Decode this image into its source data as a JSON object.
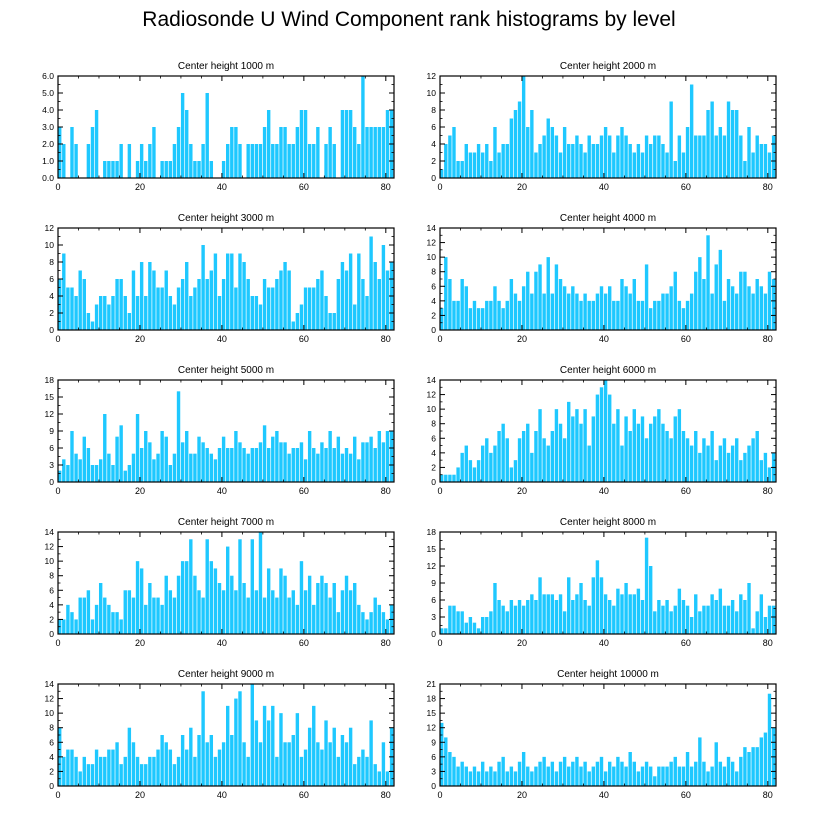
{
  "title": "Radiosonde U Wind Component rank histograms by level",
  "bar_color": "#1EC8FF",
  "chart_data": [
    {
      "type": "bar",
      "title": "Center height 1000 m",
      "x_range": [
        0,
        82
      ],
      "x_ticks": [
        0,
        20,
        40,
        60,
        80
      ],
      "ylim": [
        0,
        6
      ],
      "y_ticks": [
        0.0,
        1.0,
        2.0,
        3.0,
        4.0,
        5.0,
        6.0
      ],
      "y_tick_labels": [
        "0.0",
        "1.0",
        "2.0",
        "3.0",
        "4.0",
        "5.0",
        "6.0"
      ],
      "values": [
        3,
        2,
        0,
        3,
        2,
        0,
        0,
        2,
        3,
        4,
        0,
        1,
        1,
        1,
        1,
        2,
        0,
        2,
        0,
        1,
        2,
        1,
        2,
        3,
        0,
        1,
        1,
        1,
        2,
        3,
        5,
        4,
        2,
        1,
        1,
        2,
        5,
        1,
        0,
        0,
        1,
        2,
        3,
        3,
        2,
        0,
        2,
        2,
        2,
        2,
        3,
        4,
        2,
        2,
        3,
        3,
        2,
        2,
        3,
        4,
        4,
        2,
        2,
        3,
        0,
        2,
        3,
        2,
        0,
        4,
        4,
        4,
        3,
        2,
        6,
        3,
        3,
        3,
        3,
        3,
        4,
        4
      ]
    },
    {
      "type": "bar",
      "title": "Center height 2000 m",
      "x_range": [
        0,
        82
      ],
      "x_ticks": [
        0,
        20,
        40,
        60,
        80
      ],
      "ylim": [
        0,
        12
      ],
      "y_ticks": [
        0,
        2,
        4,
        6,
        8,
        10,
        12
      ],
      "y_tick_labels": [
        "0",
        "2",
        "4",
        "6",
        "8",
        "10",
        "12"
      ],
      "values": [
        1,
        4,
        5,
        6,
        2,
        2,
        4,
        3,
        3,
        4,
        3,
        4,
        2,
        6,
        3,
        4,
        4,
        7,
        8,
        9,
        12,
        6,
        8,
        3,
        4,
        5,
        7,
        6,
        5,
        3,
        6,
        4,
        4,
        5,
        4,
        3,
        5,
        4,
        4,
        5,
        6,
        5,
        3,
        5,
        6,
        5,
        4,
        3,
        4,
        3,
        5,
        4,
        5,
        5,
        4,
        3,
        9,
        2,
        5,
        3,
        6,
        11,
        5,
        5,
        5,
        8,
        9,
        5,
        6,
        5,
        9,
        8,
        8,
        5,
        2,
        6,
        3,
        5,
        4,
        4,
        3,
        5
      ]
    },
    {
      "type": "bar",
      "title": "Center height 3000 m",
      "x_range": [
        0,
        82
      ],
      "x_ticks": [
        0,
        20,
        40,
        60,
        80
      ],
      "ylim": [
        0,
        12
      ],
      "y_ticks": [
        0,
        2,
        4,
        6,
        8,
        10,
        12
      ],
      "y_tick_labels": [
        "0",
        "2",
        "4",
        "6",
        "8",
        "10",
        "12"
      ],
      "values": [
        6,
        9,
        5,
        5,
        4,
        7,
        6,
        2,
        1,
        3,
        4,
        4,
        3,
        4,
        6,
        6,
        4,
        2,
        7,
        4,
        8,
        4,
        8,
        7,
        5,
        5,
        7,
        4,
        3,
        5,
        6,
        8,
        4,
        5,
        6,
        10,
        6,
        7,
        9,
        4,
        6,
        9,
        9,
        5,
        9,
        8,
        6,
        4,
        4,
        3,
        6,
        5,
        5,
        6,
        7,
        8,
        7,
        1,
        2,
        3,
        5,
        5,
        5,
        6,
        7,
        4,
        2,
        2,
        6,
        8,
        7,
        9,
        3,
        9,
        6,
        4,
        11,
        8,
        6,
        10,
        7,
        8
      ]
    },
    {
      "type": "bar",
      "title": "Center height 4000 m",
      "x_range": [
        0,
        82
      ],
      "x_ticks": [
        0,
        20,
        40,
        60,
        80
      ],
      "ylim": [
        0,
        14
      ],
      "y_ticks": [
        0,
        2,
        4,
        6,
        8,
        10,
        12,
        14
      ],
      "y_tick_labels": [
        "0",
        "2",
        "4",
        "6",
        "8",
        "10",
        "12",
        "14"
      ],
      "values": [
        3,
        10,
        7,
        4,
        4,
        7,
        6,
        3,
        4,
        3,
        3,
        4,
        4,
        6,
        4,
        3,
        4,
        7,
        5,
        4,
        6,
        8,
        5,
        8,
        9,
        5,
        10,
        5,
        9,
        7,
        6,
        5,
        6,
        5,
        4,
        5,
        4,
        4,
        5,
        6,
        5,
        6,
        4,
        4,
        7,
        6,
        5,
        7,
        4,
        4,
        9,
        3,
        4,
        4,
        5,
        5,
        6,
        8,
        4,
        3,
        4,
        5,
        8,
        10,
        7,
        13,
        5,
        9,
        11,
        4,
        7,
        6,
        5,
        8,
        8,
        6,
        5,
        7,
        6,
        5,
        8,
        7
      ]
    },
    {
      "type": "bar",
      "title": "Center height 5000 m",
      "x_range": [
        0,
        82
      ],
      "x_ticks": [
        0,
        20,
        40,
        60,
        80
      ],
      "ylim": [
        0,
        18
      ],
      "y_ticks": [
        0,
        3,
        6,
        9,
        12,
        15,
        18
      ],
      "y_tick_labels": [
        "0",
        "3",
        "6",
        "9",
        "12",
        "15",
        "18"
      ],
      "values": [
        2,
        4,
        3,
        9,
        5,
        4,
        8,
        6,
        3,
        3,
        4,
        12,
        5,
        3,
        8,
        10,
        2,
        3,
        5,
        12,
        6,
        9,
        7,
        4,
        5,
        9,
        8,
        3,
        5,
        16,
        7,
        9,
        5,
        5,
        8,
        7,
        6,
        5,
        4,
        6,
        8,
        6,
        6,
        9,
        7,
        6,
        5,
        6,
        6,
        7,
        10,
        6,
        8,
        9,
        7,
        7,
        5,
        6,
        6,
        7,
        4,
        9,
        6,
        5,
        7,
        6,
        9,
        6,
        8,
        5,
        6,
        5,
        8,
        4,
        7,
        7,
        8,
        6,
        9,
        7,
        9,
        9
      ]
    },
    {
      "type": "bar",
      "title": "Center height 6000 m",
      "x_range": [
        0,
        82
      ],
      "x_ticks": [
        0,
        20,
        40,
        60,
        80
      ],
      "ylim": [
        0,
        14
      ],
      "y_ticks": [
        0,
        2,
        4,
        6,
        8,
        10,
        12,
        14
      ],
      "y_tick_labels": [
        "0",
        "2",
        "4",
        "6",
        "8",
        "10",
        "12",
        "14"
      ],
      "values": [
        1,
        1,
        1,
        1,
        2,
        4,
        5,
        3,
        2,
        3,
        5,
        6,
        4,
        5,
        7,
        8,
        6,
        2,
        3,
        6,
        7,
        8,
        4,
        7,
        10,
        6,
        5,
        7,
        10,
        8,
        6,
        11,
        9,
        10,
        8,
        10,
        5,
        9,
        12,
        13,
        14,
        12,
        8,
        10,
        5,
        9,
        7,
        10,
        8,
        9,
        6,
        8,
        9,
        10,
        8,
        7,
        6,
        9,
        10,
        7,
        6,
        5,
        7,
        4,
        6,
        5,
        7,
        3,
        5,
        6,
        4,
        5,
        6,
        3,
        4,
        5,
        6,
        7,
        3,
        4,
        2,
        4
      ]
    },
    {
      "type": "bar",
      "title": "Center height 7000 m",
      "x_range": [
        0,
        82
      ],
      "x_ticks": [
        0,
        20,
        40,
        60,
        80
      ],
      "ylim": [
        0,
        14
      ],
      "y_ticks": [
        0,
        2,
        4,
        6,
        8,
        10,
        12,
        14
      ],
      "y_tick_labels": [
        "0",
        "2",
        "4",
        "6",
        "8",
        "10",
        "12",
        "14"
      ],
      "values": [
        2,
        2,
        4,
        3,
        2,
        5,
        5,
        6,
        2,
        4,
        7,
        5,
        4,
        3,
        3,
        2,
        6,
        6,
        5,
        10,
        9,
        4,
        7,
        5,
        5,
        4,
        8,
        6,
        5,
        8,
        10,
        10,
        13,
        8,
        6,
        5,
        13,
        10,
        9,
        7,
        6,
        12,
        8,
        6,
        13,
        7,
        5,
        13,
        6,
        14,
        5,
        9,
        6,
        5,
        9,
        8,
        5,
        6,
        4,
        10,
        6,
        8,
        4,
        7,
        8,
        7,
        5,
        7,
        3,
        6,
        8,
        6,
        7,
        4,
        3,
        2,
        3,
        5,
        4,
        3,
        2,
        4
      ]
    },
    {
      "type": "bar",
      "title": "Center height 8000 m",
      "x_range": [
        0,
        82
      ],
      "x_ticks": [
        0,
        20,
        40,
        60,
        80
      ],
      "ylim": [
        0,
        18
      ],
      "y_ticks": [
        0,
        3,
        6,
        9,
        12,
        15,
        18
      ],
      "y_tick_labels": [
        "0",
        "3",
        "6",
        "9",
        "12",
        "15",
        "18"
      ],
      "values": [
        1,
        1,
        5,
        5,
        4,
        4,
        2,
        3,
        2,
        1,
        3,
        3,
        4,
        9,
        6,
        5,
        4,
        6,
        5,
        6,
        5,
        6,
        7,
        6,
        10,
        7,
        7,
        7,
        6,
        7,
        4,
        10,
        6,
        7,
        9,
        6,
        5,
        10,
        13,
        10,
        7,
        6,
        5,
        8,
        7,
        9,
        7,
        7,
        8,
        6,
        17,
        12,
        4,
        6,
        5,
        6,
        4,
        5,
        8,
        6,
        5,
        3,
        7,
        4,
        5,
        5,
        7,
        6,
        8,
        5,
        5,
        6,
        4,
        7,
        6,
        9,
        1,
        4,
        7,
        3,
        5,
        5
      ]
    },
    {
      "type": "bar",
      "title": "Center height 9000 m",
      "x_range": [
        0,
        82
      ],
      "x_ticks": [
        0,
        20,
        40,
        60,
        80
      ],
      "ylim": [
        0,
        14
      ],
      "y_ticks": [
        0,
        2,
        4,
        6,
        8,
        10,
        12,
        14
      ],
      "y_tick_labels": [
        "0",
        "2",
        "4",
        "6",
        "8",
        "10",
        "12",
        "14"
      ],
      "values": [
        8,
        4,
        5,
        5,
        4,
        2,
        4,
        3,
        3,
        5,
        4,
        4,
        5,
        5,
        6,
        3,
        4,
        8,
        6,
        4,
        3,
        3,
        4,
        4,
        5,
        7,
        6,
        5,
        3,
        4,
        7,
        5,
        8,
        4,
        7,
        13,
        6,
        7,
        4,
        5,
        6,
        11,
        7,
        12,
        13,
        6,
        4,
        14,
        9,
        6,
        11,
        9,
        11,
        4,
        10,
        6,
        6,
        7,
        10,
        4,
        5,
        8,
        11,
        6,
        5,
        9,
        6,
        8,
        4,
        7,
        6,
        8,
        3,
        4,
        5,
        4,
        9,
        3,
        2,
        6,
        2,
        8
      ]
    },
    {
      "type": "bar",
      "title": "Center height 10000 m",
      "x_range": [
        0,
        82
      ],
      "x_ticks": [
        0,
        20,
        40,
        60,
        80
      ],
      "ylim": [
        0,
        21
      ],
      "y_ticks": [
        0,
        3,
        6,
        9,
        12,
        15,
        18,
        21
      ],
      "y_tick_labels": [
        "0",
        "3",
        "6",
        "9",
        "12",
        "15",
        "18",
        "21"
      ],
      "values": [
        13,
        10,
        7,
        6,
        4,
        5,
        4,
        3,
        4,
        3,
        5,
        3,
        4,
        3,
        5,
        6,
        3,
        4,
        3,
        5,
        7,
        4,
        3,
        4,
        5,
        6,
        4,
        5,
        3,
        5,
        6,
        4,
        5,
        6,
        4,
        5,
        3,
        4,
        5,
        6,
        3,
        5,
        4,
        6,
        5,
        4,
        7,
        5,
        3,
        4,
        5,
        4,
        2,
        4,
        4,
        4,
        5,
        6,
        4,
        4,
        7,
        4,
        5,
        10,
        5,
        3,
        4,
        9,
        5,
        4,
        6,
        5,
        3,
        6,
        8,
        7,
        8,
        8,
        10,
        11,
        19,
        12
      ]
    }
  ]
}
